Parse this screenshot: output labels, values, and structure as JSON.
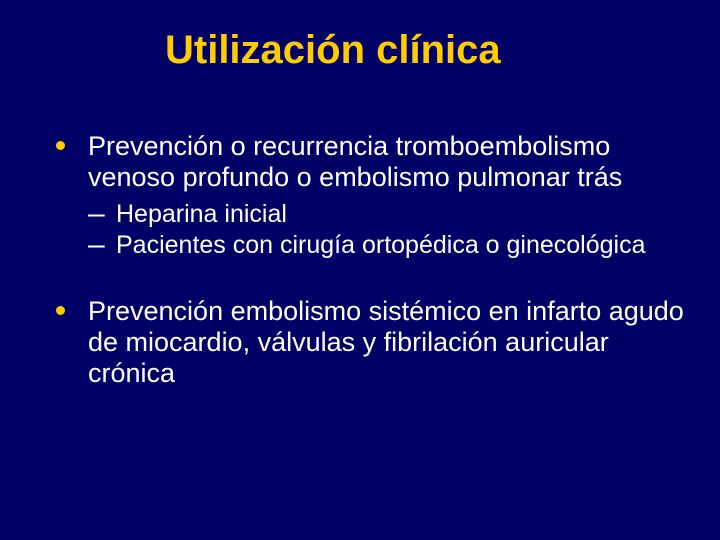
{
  "slide": {
    "title": "Utilización clínica",
    "bullets": [
      {
        "text": "Prevención o recurrencia tromboembolismo venoso profundo o embolismo pulmonar trás",
        "sub": [
          "Heparina inicial",
          "Pacientes con cirugía ortopédica o ginecológica"
        ]
      },
      {
        "text": "Prevención embolismo sistémico en infarto agudo de miocardio, válvulas y fibrilación auricular crónica",
        "sub": []
      }
    ]
  },
  "style": {
    "background_color": "#000066",
    "title_color": "#ffcc00",
    "text_color": "#ffffff",
    "bullet_color": "#ffcc00",
    "title_fontsize": 40,
    "body_fontsize": 27,
    "sub_fontsize": 25,
    "font_family": "Arial"
  }
}
